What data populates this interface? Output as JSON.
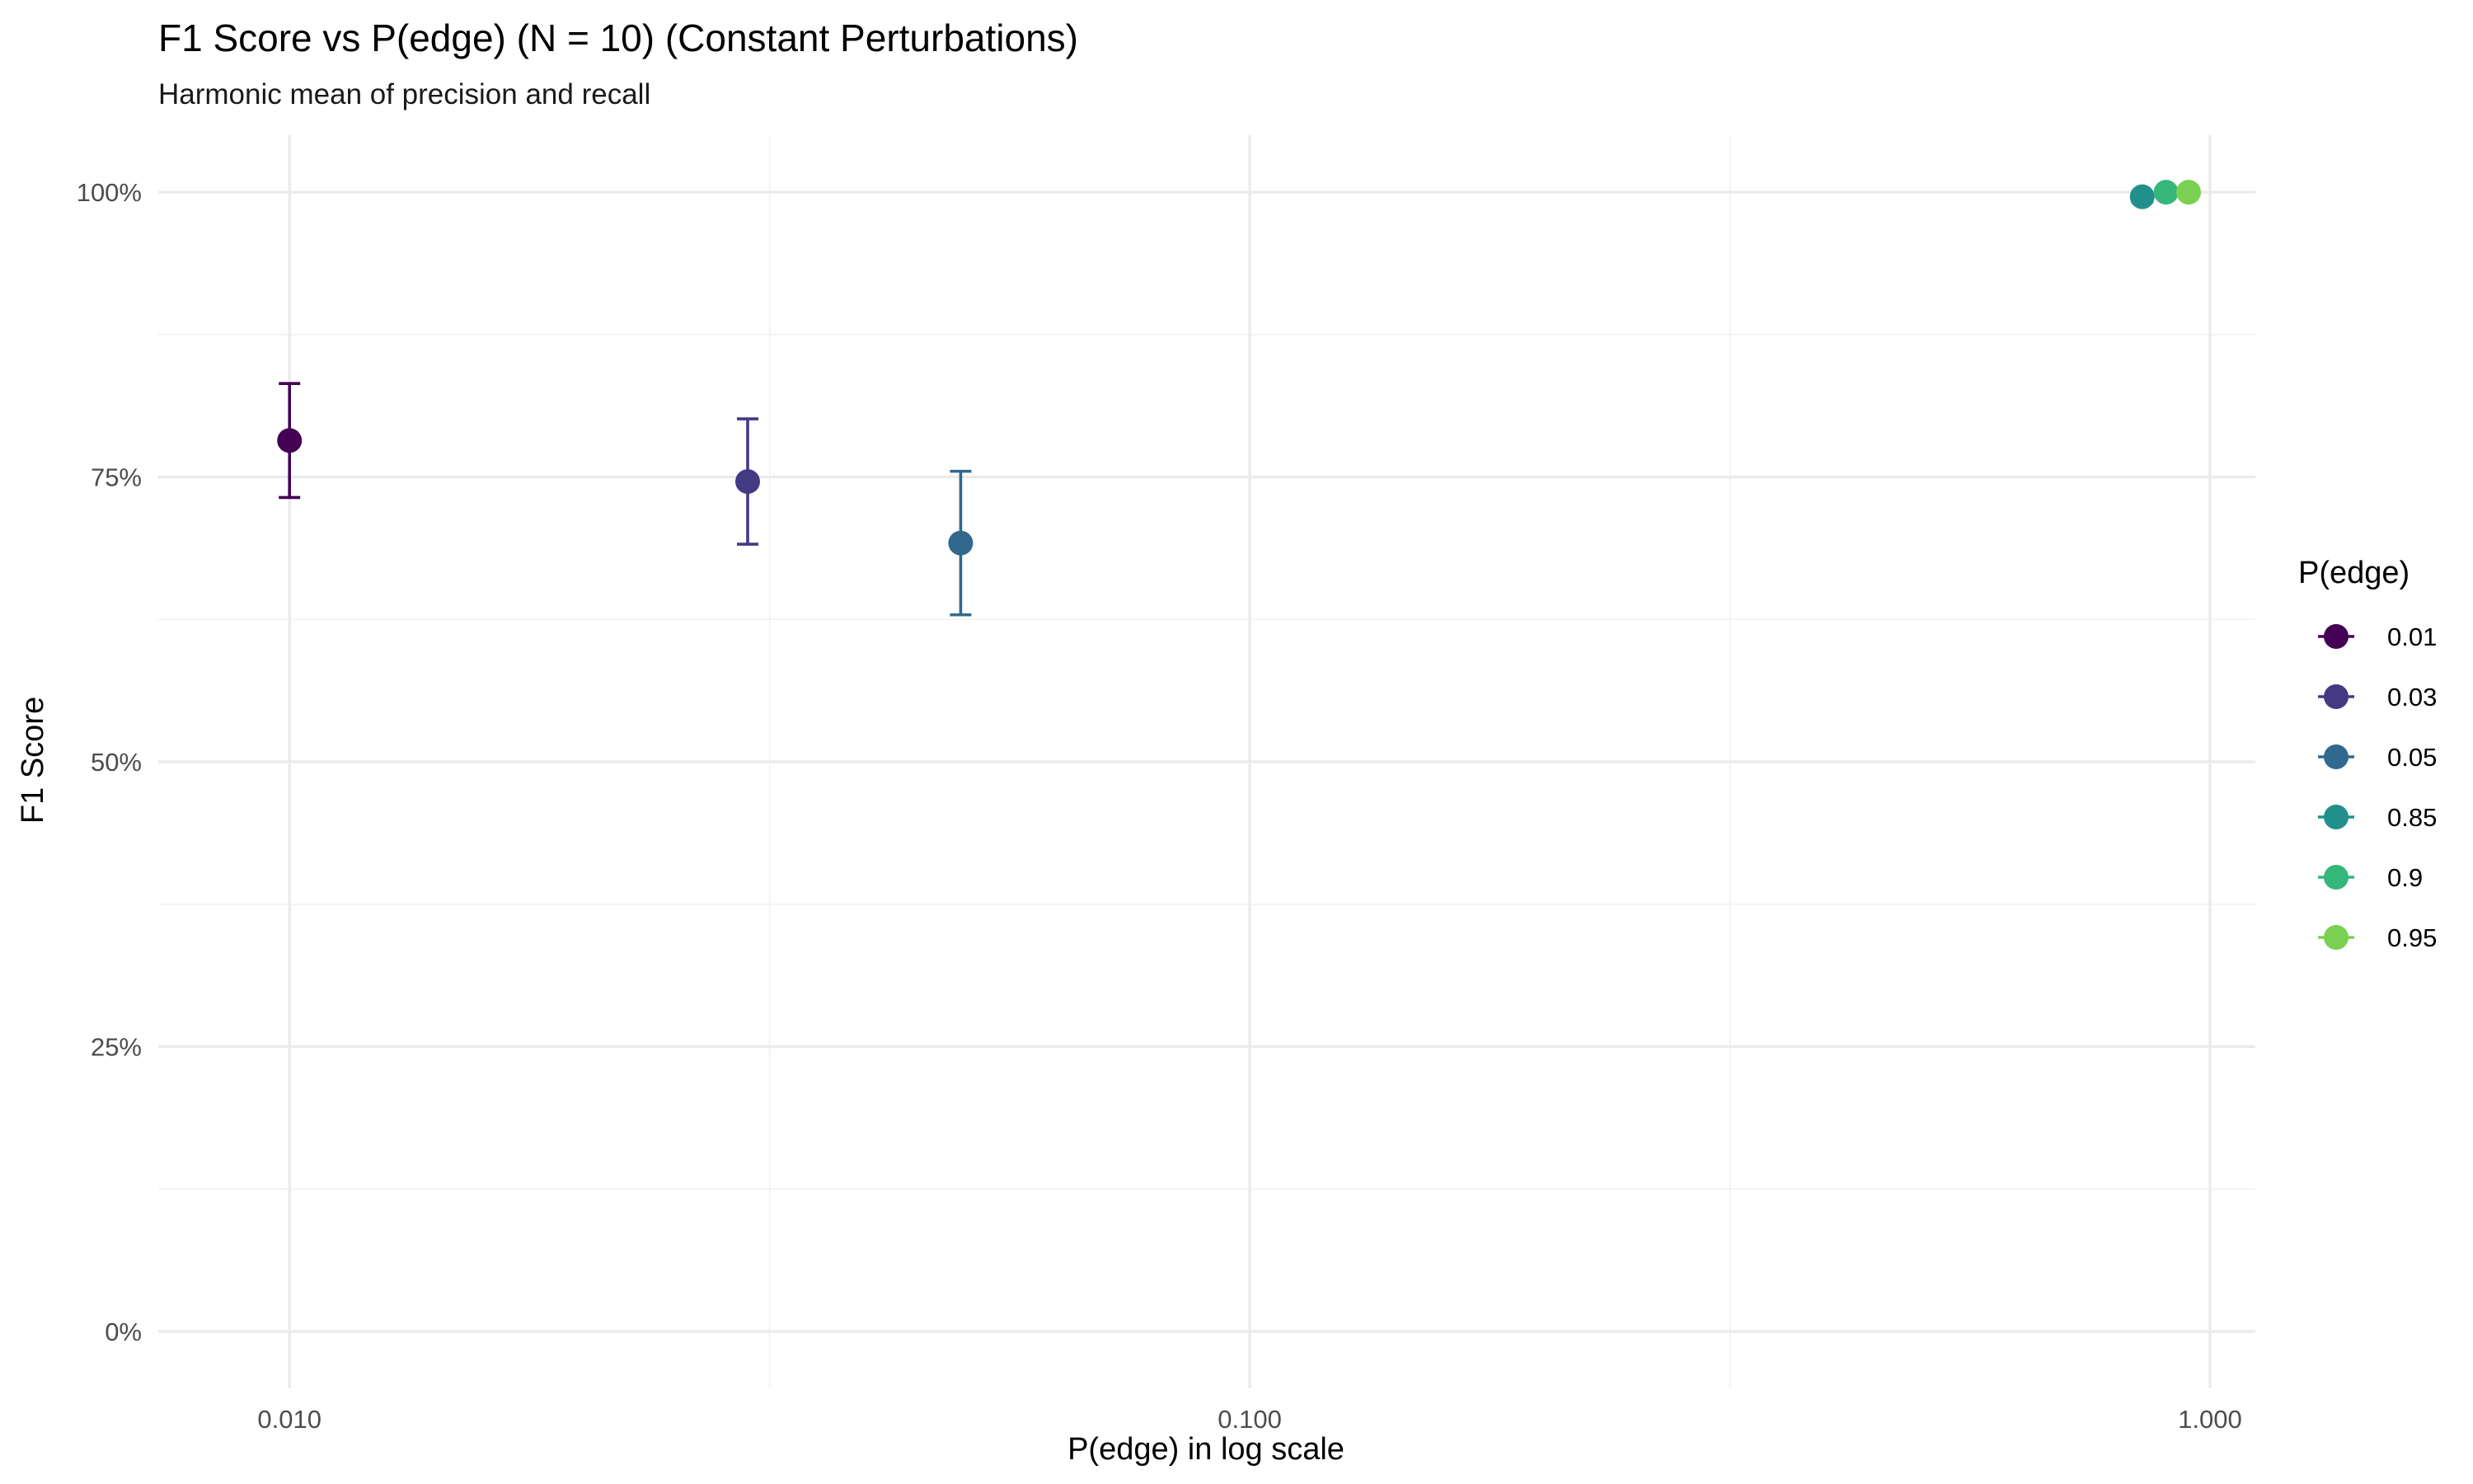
{
  "chart_data": {
    "type": "scatter",
    "title": "F1 Score vs P(edge) (N = 10) (Constant Perturbations)",
    "subtitle": "Harmonic mean of precision and recall",
    "xlabel": "P(edge) in log scale",
    "ylabel": "F1 Score",
    "x_scale": "log10",
    "xlim": [
      0.0073,
      1.115
    ],
    "ylim": [
      -0.05,
      1.05
    ],
    "x_ticks": [
      0.01,
      0.1,
      1.0
    ],
    "x_tick_labels": [
      "0.010",
      "0.100",
      "1.000"
    ],
    "y_ticks": [
      0,
      0.25,
      0.5,
      0.75,
      1.0
    ],
    "y_tick_labels": [
      "0%",
      "25%",
      "50%",
      "75%",
      "100%"
    ],
    "grid": true,
    "legend_title": "P(edge)",
    "legend_position": "right",
    "series": [
      {
        "name": "0.01",
        "x": 0.01,
        "y": 0.782,
        "ymin": 0.732,
        "ymax": 0.832,
        "color": "#440154"
      },
      {
        "name": "0.03",
        "x": 0.03,
        "y": 0.746,
        "ymin": 0.691,
        "ymax": 0.801,
        "color": "#443A83"
      },
      {
        "name": "0.05",
        "x": 0.05,
        "y": 0.692,
        "ymin": 0.629,
        "ymax": 0.755,
        "color": "#31688E"
      },
      {
        "name": "0.85",
        "x": 0.85,
        "y": 0.996,
        "ymin": 0.991,
        "ymax": 1.0,
        "color": "#21908C"
      },
      {
        "name": "0.9",
        "x": 0.9,
        "y": 1.0,
        "ymin": 1.0,
        "ymax": 1.0,
        "color": "#35B779"
      },
      {
        "name": "0.95",
        "x": 0.95,
        "y": 1.0,
        "ymin": 1.0,
        "ymax": 1.0,
        "color": "#7AD151"
      }
    ]
  }
}
